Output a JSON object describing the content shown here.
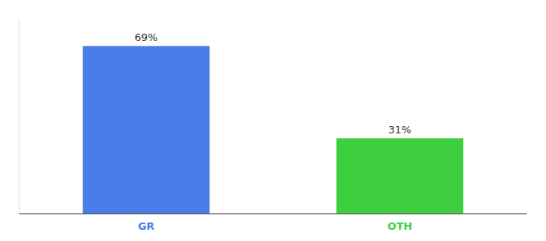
{
  "chart_data": {
    "type": "bar",
    "categories": [
      "GR",
      "OTH"
    ],
    "values": [
      69,
      31
    ],
    "value_labels": [
      "69%",
      "31%"
    ],
    "colors": [
      "#4a7de8",
      "#3ecf3e"
    ],
    "ylim": [
      0,
      80
    ],
    "data_labels": true,
    "tick_labels": "x",
    "grid": false
  }
}
